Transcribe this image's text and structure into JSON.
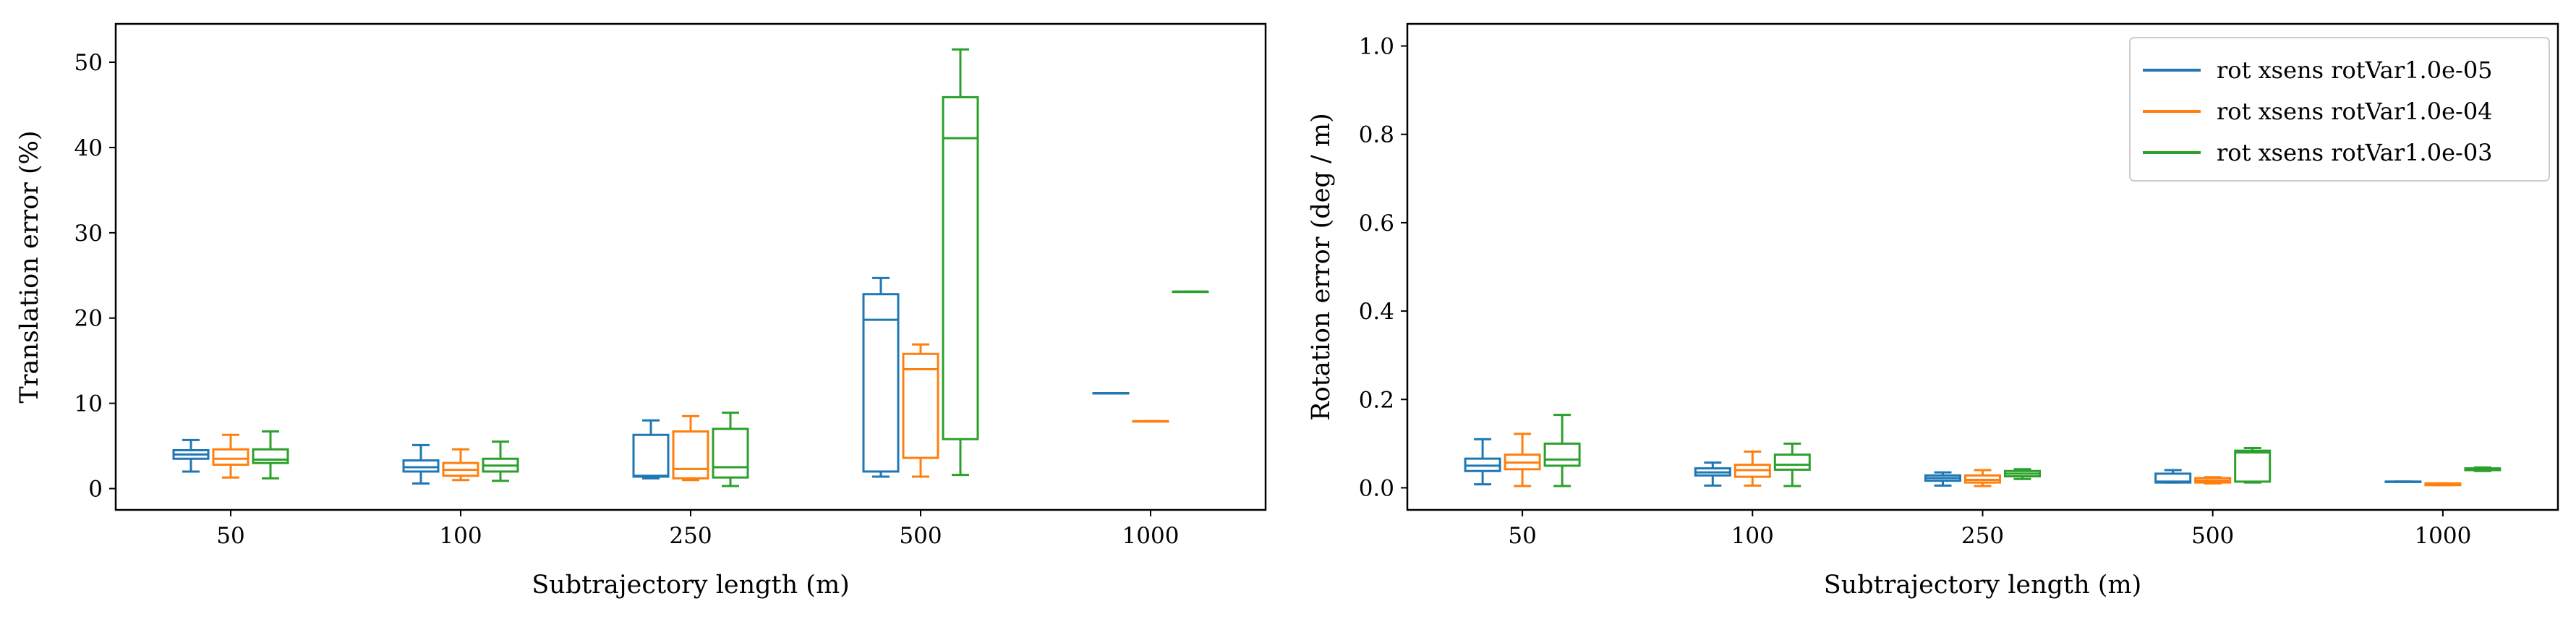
{
  "chart_data": [
    {
      "type": "box",
      "xlabel": "Subtrajectory length (m)",
      "ylabel": "Translation error (%)",
      "categories": [
        "50",
        "100",
        "250",
        "500",
        "1000"
      ],
      "ylim": [
        -2.5,
        54.5
      ],
      "yticks": [
        0,
        10,
        20,
        30,
        40,
        50
      ],
      "ytick_labels": [
        "0",
        "10",
        "20",
        "30",
        "40",
        "50"
      ],
      "grid": false,
      "series": [
        {
          "name": "rot xsens rotVar1.0e-05",
          "color": "#1f77b4",
          "boxes": [
            {
              "category": "50",
              "whisker_low": 2.0,
              "q1": 3.5,
              "median": 4.0,
              "q3": 4.5,
              "whisker_high": 5.7
            },
            {
              "category": "100",
              "whisker_low": 0.6,
              "q1": 2.0,
              "median": 2.5,
              "q3": 3.3,
              "whisker_high": 5.1
            },
            {
              "category": "250",
              "whisker_low": 1.2,
              "q1": 1.4,
              "median": 1.5,
              "q3": 6.3,
              "whisker_high": 8.0
            },
            {
              "category": "500",
              "whisker_low": 1.4,
              "q1": 2.0,
              "median": 19.8,
              "q3": 22.8,
              "whisker_high": 24.7
            },
            {
              "category": "1000",
              "whisker_low": 11.2,
              "q1": 11.2,
              "median": 11.2,
              "q3": 11.2,
              "whisker_high": 11.2
            }
          ]
        },
        {
          "name": "rot xsens rotVar1.0e-04",
          "color": "#ff7f0e",
          "boxes": [
            {
              "category": "50",
              "whisker_low": 1.3,
              "q1": 2.8,
              "median": 3.5,
              "q3": 4.6,
              "whisker_high": 6.3
            },
            {
              "category": "100",
              "whisker_low": 1.0,
              "q1": 1.5,
              "median": 2.2,
              "q3": 3.0,
              "whisker_high": 4.6
            },
            {
              "category": "250",
              "whisker_low": 1.0,
              "q1": 1.2,
              "median": 2.3,
              "q3": 6.7,
              "whisker_high": 8.5
            },
            {
              "category": "500",
              "whisker_low": 1.4,
              "q1": 3.6,
              "median": 14.0,
              "q3": 15.8,
              "whisker_high": 16.9
            },
            {
              "category": "1000",
              "whisker_low": 7.9,
              "q1": 7.9,
              "median": 7.9,
              "q3": 7.9,
              "whisker_high": 7.9
            }
          ]
        },
        {
          "name": "rot xsens rotVar1.0e-03",
          "color": "#2ca02c",
          "boxes": [
            {
              "category": "50",
              "whisker_low": 1.2,
              "q1": 3.0,
              "median": 3.4,
              "q3": 4.6,
              "whisker_high": 6.7
            },
            {
              "category": "100",
              "whisker_low": 0.9,
              "q1": 2.0,
              "median": 2.7,
              "q3": 3.5,
              "whisker_high": 5.5
            },
            {
              "category": "250",
              "whisker_low": 0.3,
              "q1": 1.3,
              "median": 2.5,
              "q3": 7.0,
              "whisker_high": 8.9
            },
            {
              "category": "500",
              "whisker_low": 1.6,
              "q1": 5.8,
              "median": 41.1,
              "q3": 45.9,
              "whisker_high": 51.5
            },
            {
              "category": "1000",
              "whisker_low": 23.1,
              "q1": 23.1,
              "median": 23.1,
              "q3": 23.1,
              "whisker_high": 23.1
            }
          ]
        }
      ]
    },
    {
      "type": "box",
      "xlabel": "Subtrajectory length (m)",
      "ylabel": "Rotation error (deg / m)",
      "categories": [
        "50",
        "100",
        "250",
        "500",
        "1000"
      ],
      "ylim": [
        -0.05,
        1.05
      ],
      "yticks": [
        0.0,
        0.2,
        0.4,
        0.6,
        0.8,
        1.0
      ],
      "ytick_labels": [
        "0.0",
        "0.2",
        "0.4",
        "0.6",
        "0.8",
        "1.0"
      ],
      "grid": false,
      "legend": {
        "position": "top-right",
        "entries": [
          "rot xsens rotVar1.0e-05",
          "rot xsens rotVar1.0e-04",
          "rot xsens rotVar1.0e-03"
        ]
      },
      "series": [
        {
          "name": "rot xsens rotVar1.0e-05",
          "color": "#1f77b4",
          "boxes": [
            {
              "category": "50",
              "whisker_low": 0.008,
              "q1": 0.038,
              "median": 0.05,
              "q3": 0.066,
              "whisker_high": 0.11
            },
            {
              "category": "100",
              "whisker_low": 0.005,
              "q1": 0.028,
              "median": 0.035,
              "q3": 0.044,
              "whisker_high": 0.057
            },
            {
              "category": "250",
              "whisker_low": 0.005,
              "q1": 0.016,
              "median": 0.022,
              "q3": 0.028,
              "whisker_high": 0.035
            },
            {
              "category": "500",
              "whisker_low": 0.012,
              "q1": 0.012,
              "median": 0.014,
              "q3": 0.032,
              "whisker_high": 0.04
            },
            {
              "category": "1000",
              "whisker_low": 0.014,
              "q1": 0.014,
              "median": 0.014,
              "q3": 0.014,
              "whisker_high": 0.014
            }
          ]
        },
        {
          "name": "rot xsens rotVar1.0e-04",
          "color": "#ff7f0e",
          "boxes": [
            {
              "category": "50",
              "whisker_low": 0.004,
              "q1": 0.042,
              "median": 0.057,
              "q3": 0.075,
              "whisker_high": 0.122
            },
            {
              "category": "100",
              "whisker_low": 0.005,
              "q1": 0.025,
              "median": 0.04,
              "q3": 0.052,
              "whisker_high": 0.082
            },
            {
              "category": "250",
              "whisker_low": 0.004,
              "q1": 0.012,
              "median": 0.018,
              "q3": 0.028,
              "whisker_high": 0.04
            },
            {
              "category": "500",
              "whisker_low": 0.01,
              "q1": 0.012,
              "median": 0.016,
              "q3": 0.022,
              "whisker_high": 0.024
            },
            {
              "category": "1000",
              "whisker_low": 0.006,
              "q1": 0.006,
              "median": 0.008,
              "q3": 0.01,
              "whisker_high": 0.01
            }
          ]
        },
        {
          "name": "rot xsens rotVar1.0e-03",
          "color": "#2ca02c",
          "boxes": [
            {
              "category": "50",
              "whisker_low": 0.004,
              "q1": 0.05,
              "median": 0.064,
              "q3": 0.1,
              "whisker_high": 0.165
            },
            {
              "category": "100",
              "whisker_low": 0.004,
              "q1": 0.041,
              "median": 0.052,
              "q3": 0.075,
              "whisker_high": 0.1
            },
            {
              "category": "250",
              "whisker_low": 0.02,
              "q1": 0.026,
              "median": 0.032,
              "q3": 0.038,
              "whisker_high": 0.042
            },
            {
              "category": "500",
              "whisker_low": 0.012,
              "q1": 0.014,
              "median": 0.08,
              "q3": 0.084,
              "whisker_high": 0.09
            },
            {
              "category": "1000",
              "whisker_low": 0.038,
              "q1": 0.04,
              "median": 0.042,
              "q3": 0.044,
              "whisker_high": 0.046
            }
          ]
        }
      ]
    }
  ]
}
